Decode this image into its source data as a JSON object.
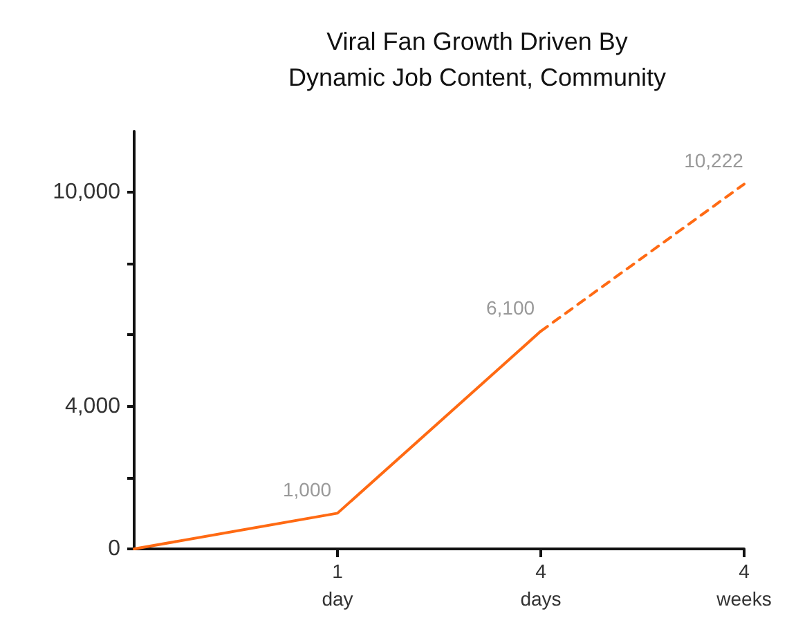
{
  "chart_data": {
    "type": "line",
    "title": "Viral Fan Growth Driven By\nDynamic Job Content, Community",
    "categories": [
      null,
      "1\nday",
      "4\ndays",
      "4\nweeks"
    ],
    "series": [
      {
        "color": "#ff6a13",
        "line_style": "solid",
        "values": [
          0,
          1000,
          6100,
          null
        ],
        "value_labels": [
          null,
          "1,000",
          "6,100",
          null
        ]
      },
      {
        "color": "#ff6a13",
        "line_style": "dashed",
        "values": [
          null,
          null,
          6100,
          10222
        ],
        "value_labels": [
          null,
          null,
          null,
          "10,222"
        ]
      }
    ],
    "ylim": [
      0,
      11700
    ],
    "yticks": [
      {
        "value": 0,
        "label": "0"
      },
      {
        "value": 2000,
        "label": null
      },
      {
        "value": 4000,
        "label": "4,000"
      },
      {
        "value": 6000,
        "label": null
      },
      {
        "value": 8000,
        "label": null
      },
      {
        "value": 10000,
        "label": "10,000"
      }
    ],
    "grid": false,
    "marker": "none"
  }
}
